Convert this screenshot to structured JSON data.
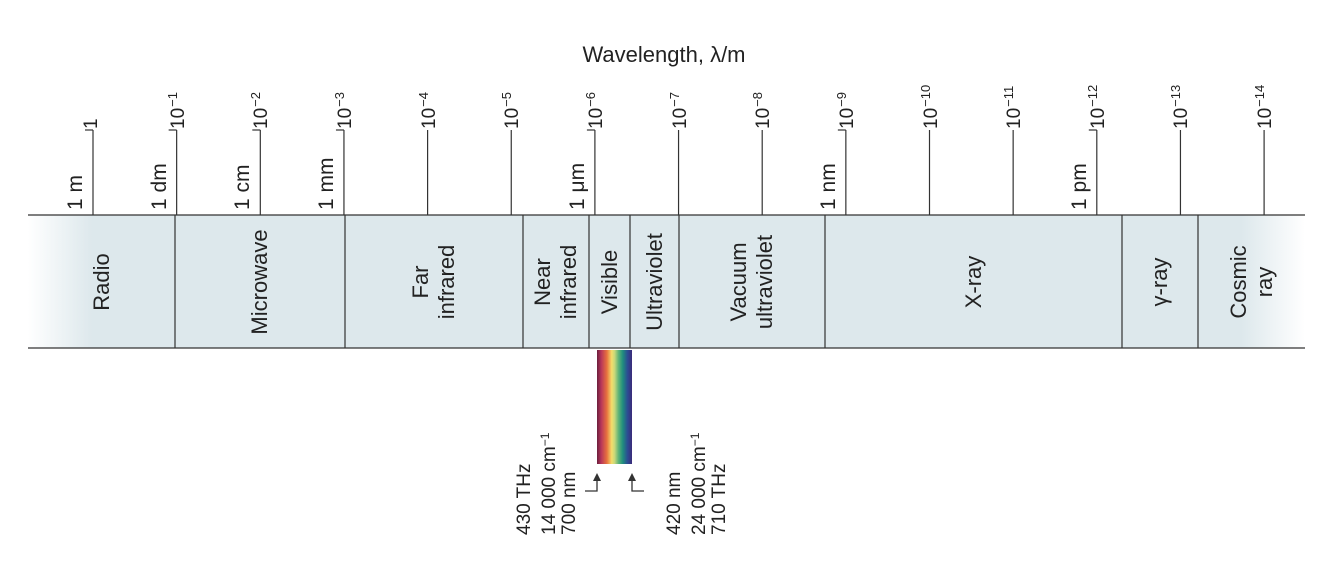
{
  "diagram": {
    "axis_title": "Wavelength, λ/m",
    "ticks": [
      {
        "base": "1",
        "exp": "",
        "unit": "1 m"
      },
      {
        "base": "10",
        "exp": "−1",
        "unit": "1 dm"
      },
      {
        "base": "10",
        "exp": "−2",
        "unit": "1 cm"
      },
      {
        "base": "10",
        "exp": "−3",
        "unit": "1 mm"
      },
      {
        "base": "10",
        "exp": "−4",
        "unit": ""
      },
      {
        "base": "10",
        "exp": "−5",
        "unit": ""
      },
      {
        "base": "10",
        "exp": "−6",
        "unit": "1 μm"
      },
      {
        "base": "10",
        "exp": "−7",
        "unit": ""
      },
      {
        "base": "10",
        "exp": "−8",
        "unit": ""
      },
      {
        "base": "10",
        "exp": "−9",
        "unit": "1 nm"
      },
      {
        "base": "10",
        "exp": "−10",
        "unit": ""
      },
      {
        "base": "10",
        "exp": "−11",
        "unit": ""
      },
      {
        "base": "10",
        "exp": "−12",
        "unit": "1 pm"
      },
      {
        "base": "10",
        "exp": "−13",
        "unit": ""
      },
      {
        "base": "10",
        "exp": "−14",
        "unit": ""
      }
    ],
    "regions": [
      {
        "lines": [
          "Radio"
        ]
      },
      {
        "lines": [
          "Microwave"
        ]
      },
      {
        "lines": [
          "Far",
          "infrared"
        ]
      },
      {
        "lines": [
          "Near",
          "infrared"
        ]
      },
      {
        "lines": [
          "Visible"
        ]
      },
      {
        "lines": [
          "Ultraviolet"
        ]
      },
      {
        "lines": [
          "Vacuum",
          "ultraviolet"
        ]
      },
      {
        "lines": [
          "X-ray"
        ]
      },
      {
        "lines": [
          "γ-ray"
        ]
      },
      {
        "lines": [
          "Cosmic",
          "ray"
        ]
      }
    ],
    "visible_red": {
      "frequency": "430 THz",
      "wavenumber": "14 000 cm",
      "wavenumber_exp": "−1",
      "wavelength": "700 nm"
    },
    "visible_violet": {
      "wavelength": "420 nm",
      "wavenumber": "24 000 cm",
      "wavenumber_exp": "−1",
      "frequency": "710 THz"
    },
    "colors": {
      "band_fill": "#dde8ec",
      "line": "#333333"
    }
  }
}
